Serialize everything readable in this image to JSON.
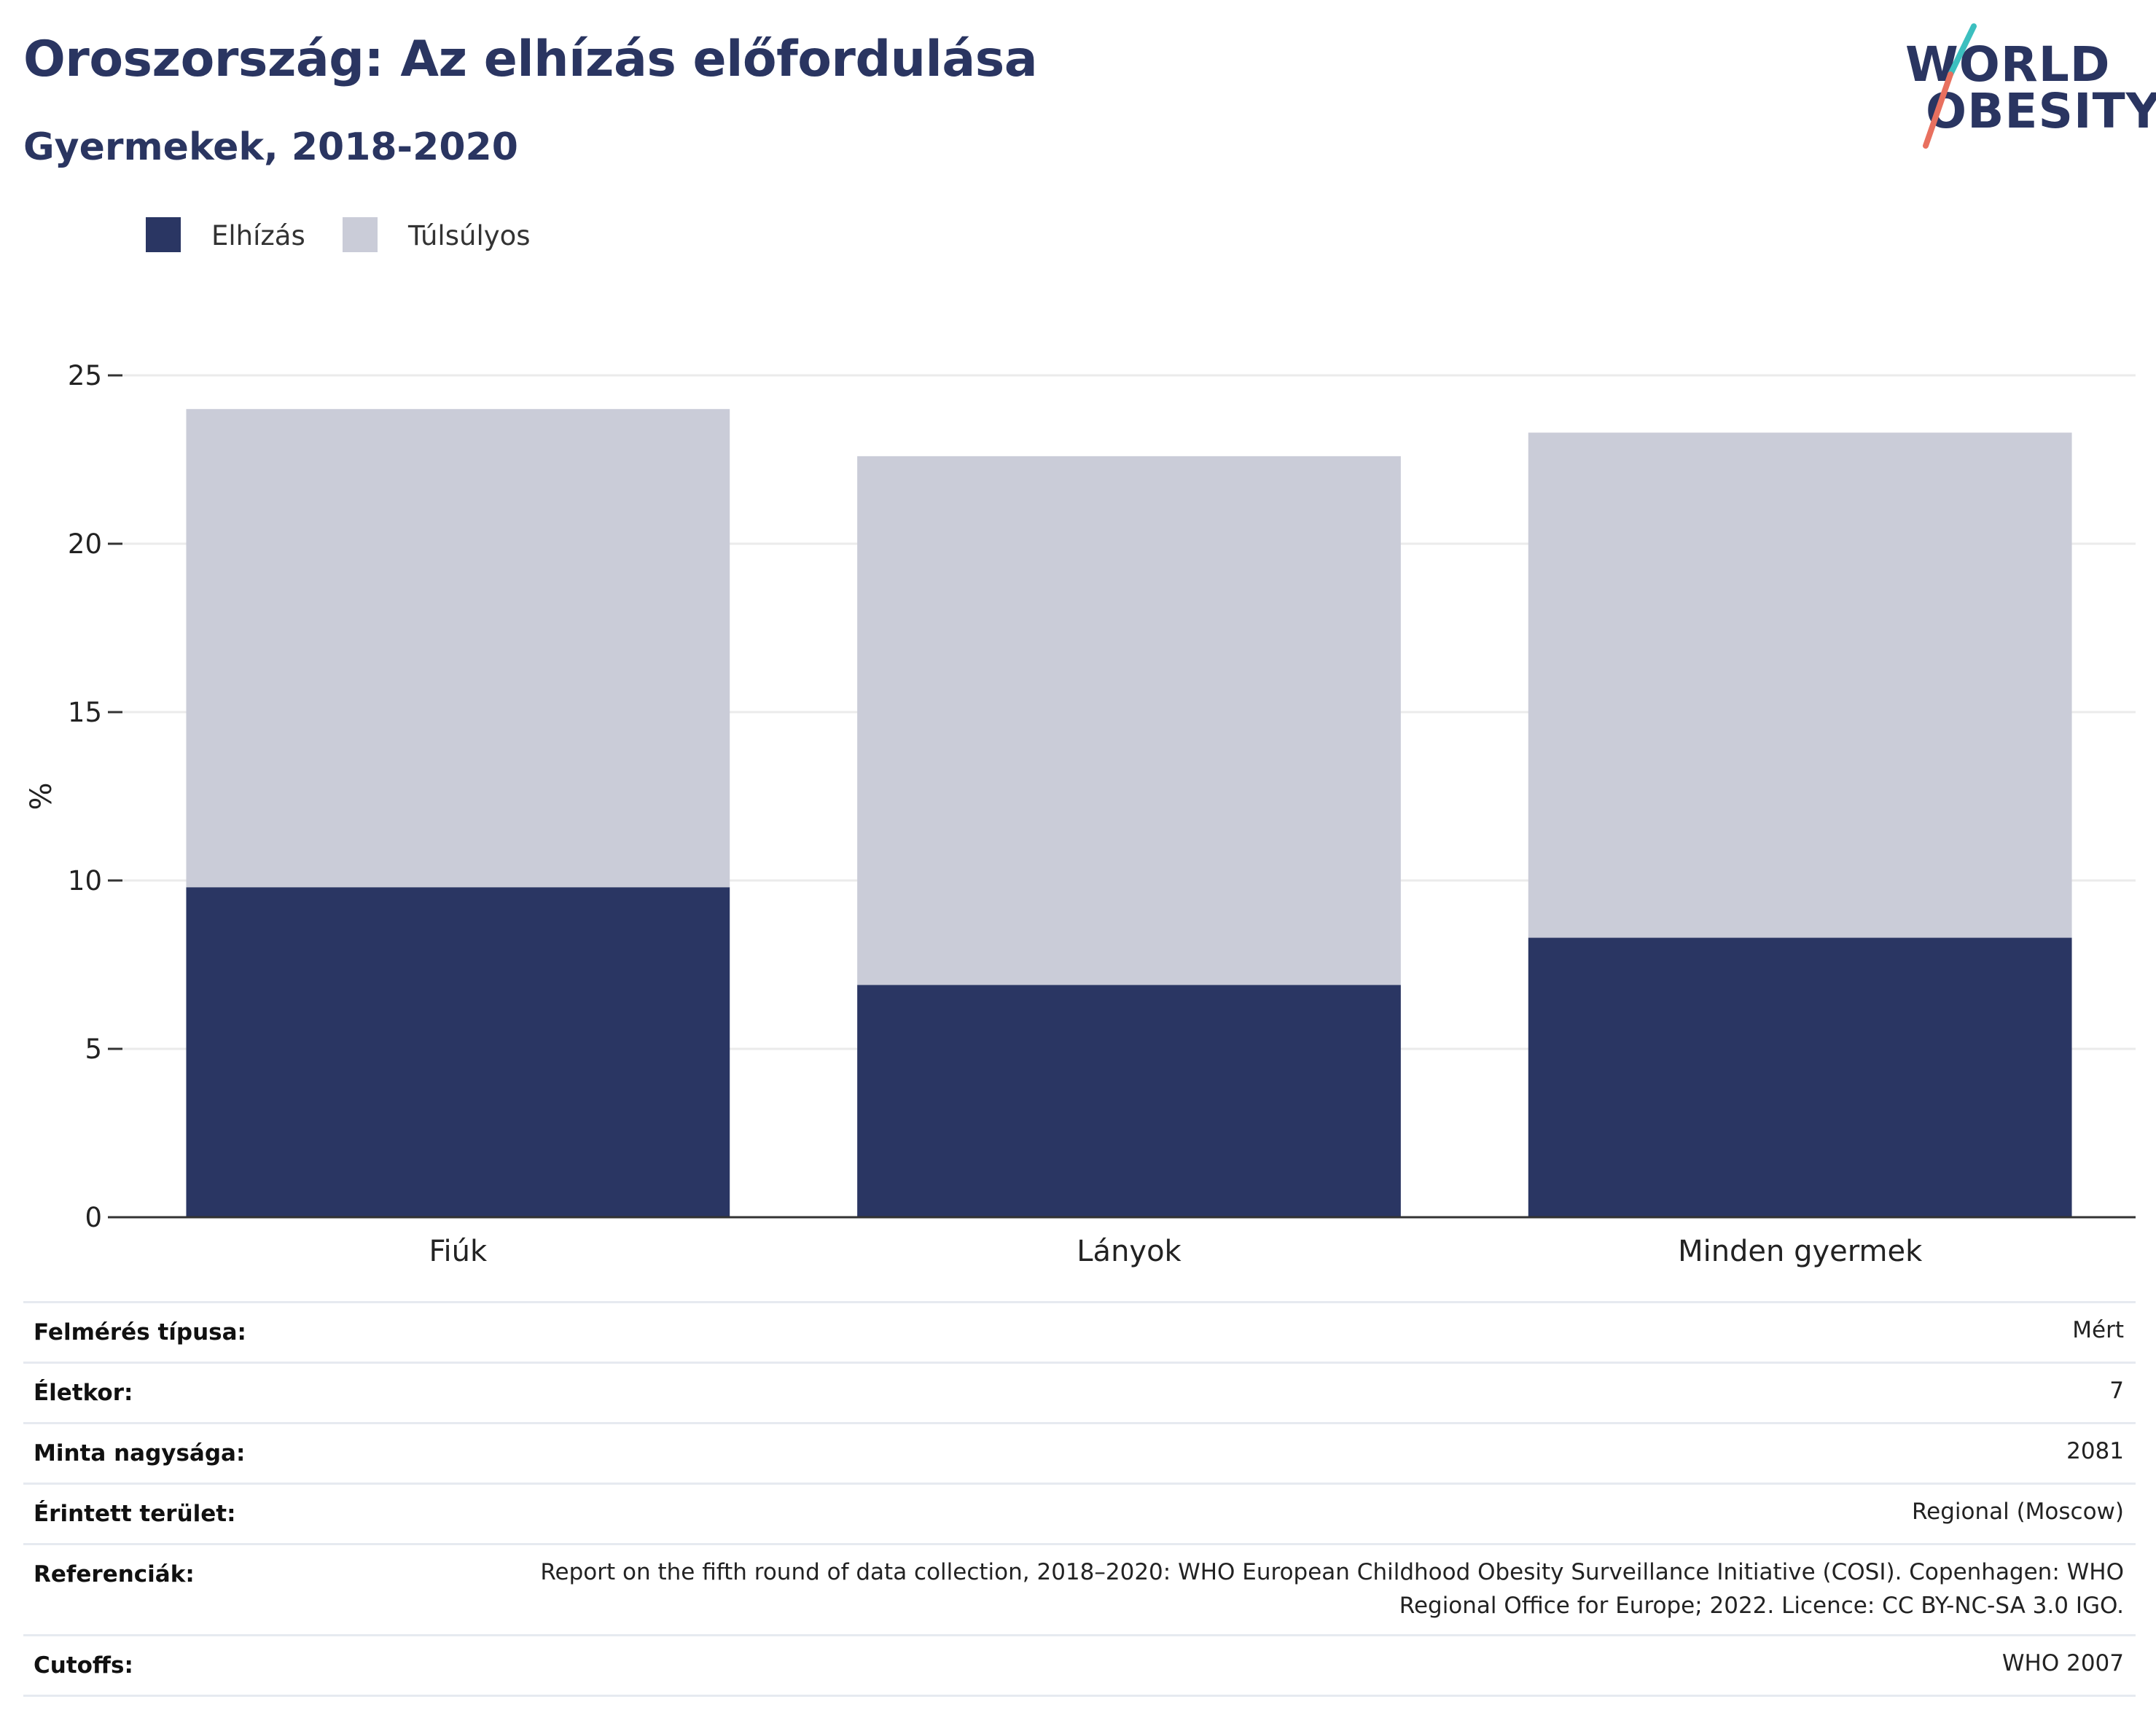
{
  "title": "Oroszország: Az elhízás előfordulása",
  "subtitle": "Gyermekek, 2018-2020",
  "logo": {
    "line1": "WORLD",
    "line2": "OBESITY"
  },
  "colors": {
    "obesity": "#2a3663",
    "overweight": "#caccd8",
    "text": "#2a3561",
    "grid": "#ebebeb",
    "logo_teal": "#3cbfbf",
    "logo_coral": "#e8705f"
  },
  "chart_data": {
    "type": "bar",
    "stacked": true,
    "categories": [
      "Fiúk",
      "Lányok",
      "Minden gyermek"
    ],
    "series": [
      {
        "name": "Elhízás",
        "values": [
          9.8,
          6.9,
          8.3
        ],
        "color": "#2a3663"
      },
      {
        "name": "Túlsúlyos",
        "values": [
          14.2,
          15.7,
          15.0
        ],
        "color": "#caccd8"
      }
    ],
    "ylabel": "%",
    "ylim": [
      0,
      25
    ],
    "yticks": [
      0,
      5,
      10,
      15,
      20,
      25
    ],
    "grid": true,
    "legend": "top-left"
  },
  "info": [
    {
      "label": "Felmérés típusa:",
      "value": "Mért"
    },
    {
      "label": "Életkor:",
      "value": "7"
    },
    {
      "label": "Minta nagysága:",
      "value": "2081"
    },
    {
      "label": "Érintett terület:",
      "value": "Regional (Moscow)"
    },
    {
      "label": "Referenciák:",
      "value": "Report on the fifth round of data collection, 2018–2020: WHO European Childhood Obesity Surveillance Initiative (COSI). Copenhagen: WHO Regional Office for Europe; 2022. Licence: CC BY-NC-SA 3.0 IGO."
    },
    {
      "label": "Cutoffs:",
      "value": "WHO 2007"
    }
  ]
}
